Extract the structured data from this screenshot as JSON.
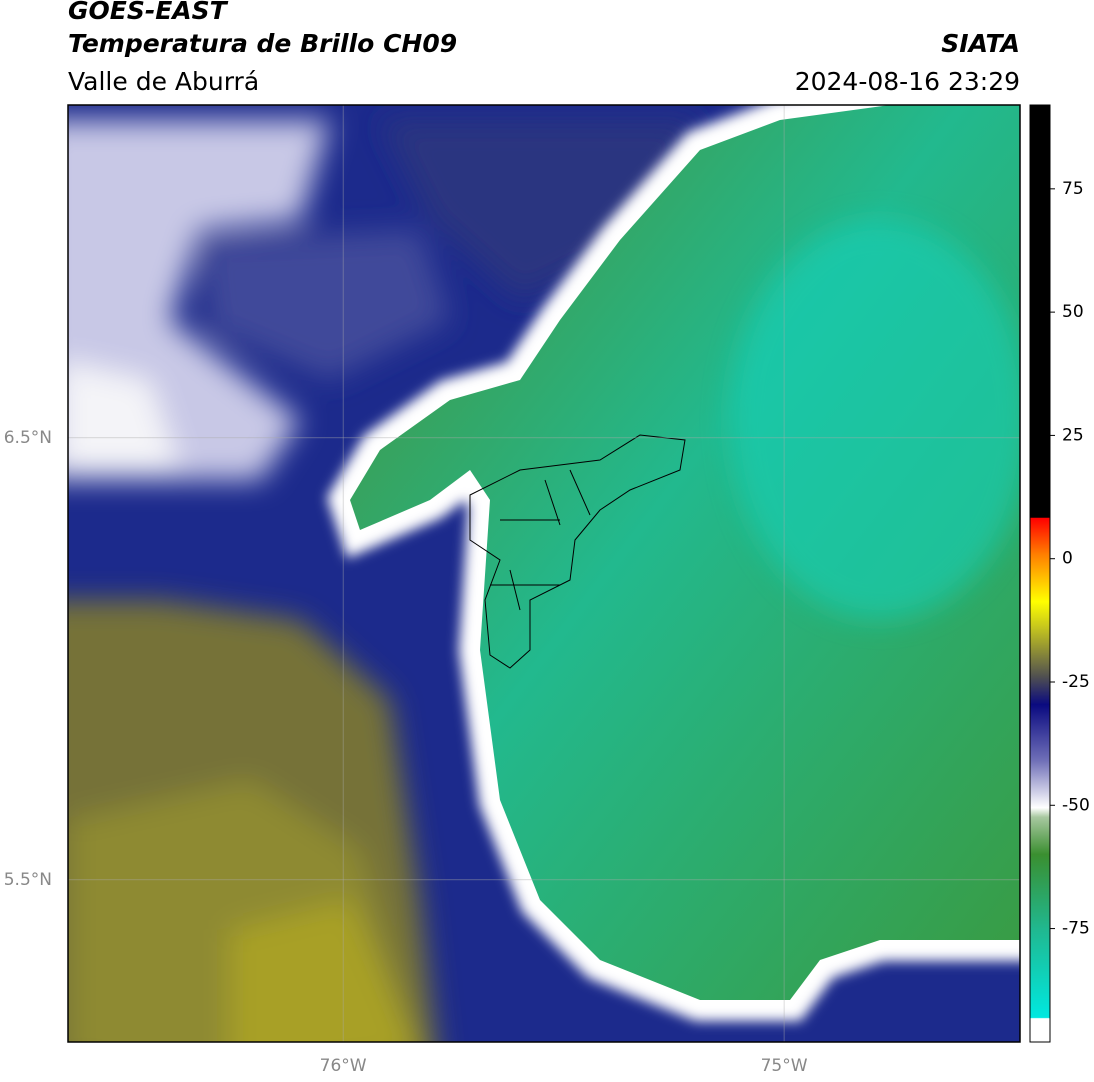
{
  "header": {
    "title": "GOES-EAST",
    "subtitle": "Temperatura de Brillo CH09",
    "region": "Valle de Aburrá",
    "source": "SIATA",
    "datetime": "2024-08-16 23:29"
  },
  "map": {
    "xlim": [
      -76.624,
      -74.465
    ],
    "ylim": [
      5.133,
      7.253
    ],
    "xticks": [
      {
        "value": -76,
        "label": "76°W"
      },
      {
        "value": -75,
        "label": "75°W"
      }
    ],
    "yticks": [
      {
        "value": 6.5,
        "label": "6.5°N"
      },
      {
        "value": 5.5,
        "label": "5.5°N"
      }
    ],
    "grid": true
  },
  "colorbar": {
    "clim": [
      -98,
      92
    ],
    "ticks": [
      75,
      50,
      25,
      0,
      -25,
      -50,
      -75
    ]
  }
}
